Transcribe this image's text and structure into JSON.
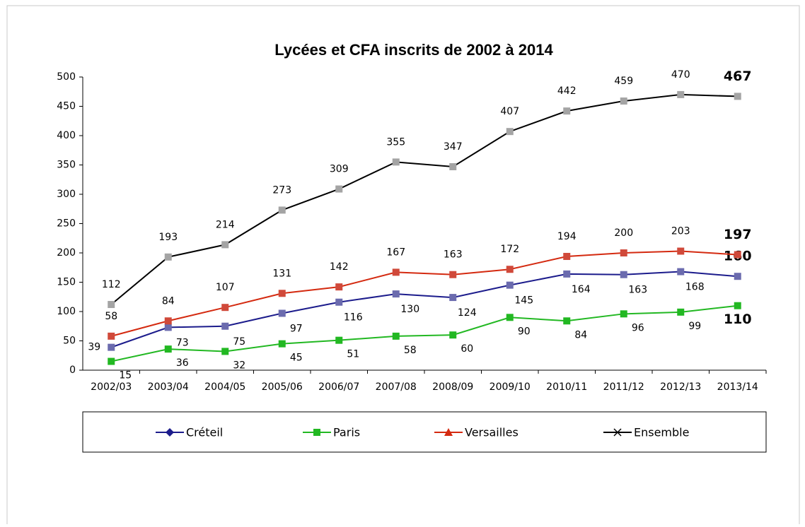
{
  "chart_data": {
    "type": "line",
    "title": "Lycées et CFA inscrits de 2002 à 2014",
    "categories": [
      "2002/03",
      "2003/04",
      "2004/05",
      "2005/06",
      "2006/07",
      "2007/08",
      "2008/09",
      "2009/10",
      "2010/11",
      "2011/12",
      "2012/13",
      "2013/14"
    ],
    "series": [
      {
        "name": "Créteil",
        "color": "#1c1c8c",
        "marker_color": "#6b6bae",
        "values": [
          39,
          73,
          75,
          97,
          116,
          130,
          124,
          145,
          164,
          163,
          168,
          160
        ]
      },
      {
        "name": "Paris",
        "color": "#22b822",
        "marker_color": "#22b822",
        "values": [
          15,
          36,
          32,
          45,
          51,
          58,
          60,
          90,
          84,
          96,
          99,
          110
        ]
      },
      {
        "name": "Versailles",
        "color": "#d42a10",
        "marker_color": "#d0493a",
        "values": [
          58,
          84,
          107,
          131,
          142,
          167,
          163,
          172,
          194,
          200,
          203,
          197
        ]
      },
      {
        "name": "Ensemble",
        "color": "#000000",
        "marker_color": "#a4a4a4",
        "values": [
          112,
          193,
          214,
          273,
          309,
          355,
          347,
          407,
          442,
          459,
          470,
          467
        ]
      }
    ],
    "ylim": [
      0,
      500
    ],
    "yticks": [
      0,
      50,
      100,
      150,
      200,
      250,
      300,
      350,
      400,
      450,
      500
    ],
    "legend": "bottom"
  }
}
